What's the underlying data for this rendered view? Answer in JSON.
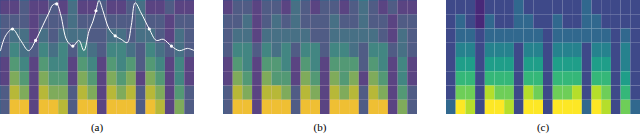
{
  "chart_data": [
    {
      "type": "heatmap",
      "caption": "(a)",
      "xlim": [
        0,
        100
      ],
      "ylim": [
        0,
        100
      ],
      "tick_labels": false,
      "color": "#c0306a",
      "cell_range": [
        0,
        9
      ],
      "cells": [
        [
          2,
          2,
          3,
          2,
          2,
          3,
          2,
          4,
          2,
          2,
          3,
          2,
          2,
          3,
          4,
          2,
          2,
          3,
          2,
          2
        ],
        [
          3,
          3,
          3,
          2,
          3,
          3,
          3,
          4,
          3,
          3,
          3,
          3,
          3,
          3,
          4,
          3,
          3,
          2,
          3,
          3
        ],
        [
          3,
          4,
          4,
          2,
          4,
          3,
          4,
          4,
          4,
          3,
          3,
          4,
          4,
          3,
          4,
          4,
          3,
          2,
          4,
          3
        ],
        [
          3,
          5,
          4,
          3,
          5,
          4,
          5,
          3,
          5,
          4,
          3,
          5,
          5,
          4,
          3,
          5,
          4,
          3,
          4,
          3
        ],
        [
          2,
          6,
          5,
          2,
          6,
          5,
          5,
          2,
          6,
          5,
          2,
          6,
          5,
          6,
          3,
          6,
          5,
          2,
          5,
          2
        ],
        [
          2,
          7,
          6,
          2,
          7,
          6,
          6,
          2,
          7,
          6,
          2,
          7,
          6,
          7,
          2,
          7,
          6,
          2,
          5,
          2
        ],
        [
          3,
          8,
          7,
          2,
          8,
          7,
          7,
          3,
          8,
          7,
          2,
          8,
          7,
          8,
          3,
          8,
          7,
          2,
          6,
          3
        ],
        [
          3,
          9,
          9,
          2,
          9,
          9,
          8,
          3,
          9,
          9,
          2,
          9,
          9,
          9,
          3,
          9,
          8,
          2,
          7,
          3
        ]
      ],
      "line": {
        "color": "#ffffff",
        "x": [
          0,
          2.6,
          6.2,
          10.4,
          14.5,
          18.1,
          21.8,
          24.9,
          26.9,
          29,
          31.1,
          34.2,
          37.3,
          40.4,
          43,
          45.6,
          47.7,
          49.2,
          50.8,
          52.8,
          56,
          59.1,
          62.2,
          65.3,
          67.4,
          69.4,
          72.5,
          76.7,
          80.3,
          83.9,
          88.1,
          92.2,
          96.4,
          100
        ],
        "y": [
          56,
          69,
          75,
          65,
          56,
          65,
          78,
          89,
          96,
          97,
          87,
          65,
          60,
          65,
          56,
          73,
          82,
          91,
          100,
          91,
          75,
          69,
          66,
          63,
          78,
          98,
          89,
          75,
          65,
          66,
          60,
          56,
          58,
          56
        ]
      },
      "dots": {
        "x": [
          6.2,
          18.1,
          29,
          37.3,
          49.2,
          59.1,
          76.7,
          88.1
        ],
        "y": [
          75,
          65,
          97,
          60,
          91,
          69,
          75,
          60
        ]
      }
    },
    {
      "type": "heatmap",
      "caption": "(b)",
      "xlim": [
        0,
        100
      ],
      "ylim": [
        0,
        100
      ],
      "tick_labels": false,
      "color": "#c0306a",
      "cell_range": [
        0,
        9
      ],
      "cells": [
        [
          2,
          3,
          3,
          2,
          3,
          3,
          2,
          4,
          3,
          2,
          3,
          3,
          2,
          3,
          4,
          3,
          2,
          3,
          2,
          2
        ],
        [
          3,
          3,
          4,
          2,
          3,
          4,
          3,
          4,
          3,
          3,
          3,
          4,
          3,
          3,
          4,
          3,
          3,
          2,
          3,
          3
        ],
        [
          3,
          4,
          4,
          2,
          4,
          4,
          4,
          4,
          4,
          3,
          3,
          4,
          4,
          4,
          4,
          4,
          3,
          2,
          4,
          3
        ],
        [
          3,
          5,
          5,
          3,
          5,
          4,
          5,
          3,
          5,
          5,
          3,
          5,
          5,
          4,
          3,
          5,
          5,
          3,
          4,
          3
        ],
        [
          2,
          6,
          5,
          2,
          6,
          6,
          5,
          2,
          6,
          5,
          2,
          6,
          6,
          6,
          3,
          6,
          5,
          2,
          5,
          2
        ],
        [
          2,
          7,
          6,
          2,
          7,
          6,
          6,
          2,
          7,
          6,
          2,
          7,
          6,
          7,
          2,
          7,
          6,
          2,
          5,
          2
        ],
        [
          3,
          8,
          7,
          2,
          8,
          8,
          7,
          3,
          8,
          7,
          2,
          8,
          7,
          8,
          3,
          8,
          7,
          2,
          6,
          3
        ],
        [
          3,
          9,
          9,
          2,
          9,
          9,
          9,
          3,
          9,
          9,
          2,
          9,
          9,
          9,
          3,
          9,
          9,
          2,
          7,
          3
        ]
      ]
    },
    {
      "type": "heatmap",
      "caption": "(c)",
      "xlim": [
        0,
        100
      ],
      "ylim": [
        0,
        100
      ],
      "tick_labels": false,
      "cell_range": [
        0,
        9
      ],
      "cells": [
        [
          2,
          2,
          2,
          1,
          2,
          2,
          2,
          3,
          2,
          2,
          2,
          2,
          2,
          2,
          3,
          2,
          2,
          2,
          2,
          2
        ],
        [
          2,
          3,
          2,
          1,
          3,
          2,
          2,
          3,
          3,
          2,
          2,
          3,
          2,
          2,
          3,
          3,
          2,
          2,
          2,
          2
        ],
        [
          2,
          3,
          3,
          2,
          3,
          3,
          3,
          3,
          3,
          3,
          2,
          3,
          3,
          3,
          3,
          3,
          3,
          2,
          3,
          2
        ],
        [
          2,
          4,
          4,
          2,
          4,
          4,
          4,
          2,
          4,
          4,
          2,
          4,
          4,
          4,
          2,
          4,
          4,
          2,
          4,
          2
        ],
        [
          2,
          5,
          5,
          2,
          5,
          5,
          5,
          2,
          5,
          5,
          2,
          5,
          5,
          5,
          2,
          5,
          5,
          2,
          4,
          2
        ],
        [
          2,
          6,
          6,
          2,
          6,
          6,
          6,
          2,
          6,
          6,
          2,
          6,
          6,
          6,
          2,
          6,
          6,
          2,
          5,
          2
        ],
        [
          2,
          7,
          7,
          2,
          8,
          7,
          7,
          2,
          8,
          7,
          2,
          7,
          7,
          8,
          2,
          8,
          7,
          2,
          6,
          2
        ],
        [
          3,
          9,
          8,
          2,
          9,
          9,
          8,
          2,
          9,
          9,
          2,
          9,
          9,
          9,
          3,
          9,
          8,
          2,
          7,
          3
        ]
      ]
    }
  ]
}
